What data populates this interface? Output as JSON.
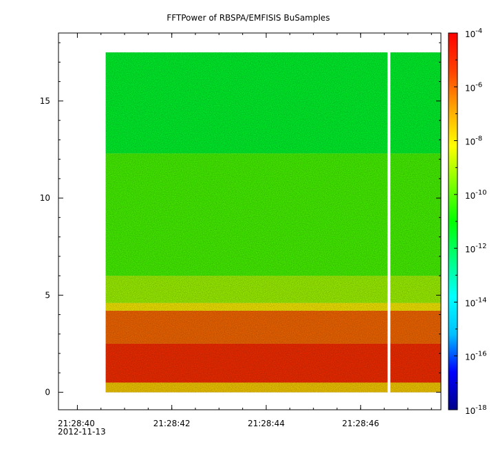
{
  "chart_data": {
    "type": "heatmap",
    "title": "FFTPower of RBSPA/EMFISIS  BuSamples",
    "xlabel": "",
    "ylabel": "",
    "date_label": "2012-11-13",
    "x_ticks": [
      "21:28:40",
      "21:28:42",
      "21:28:44",
      "21:28:46"
    ],
    "x_range_seconds": [
      "21:28:39.6",
      "21:28:47.7"
    ],
    "data_start": "21:28:40.6",
    "data_end": "21:28:47.7",
    "gap_at": "21:28:46.6",
    "y_ticks": [
      0,
      5,
      10,
      15
    ],
    "ylim": [
      -0.9,
      18.5
    ],
    "y_data_range": [
      0,
      17.5
    ],
    "colorbar": {
      "scale": "log",
      "range": [
        "1e-18",
        "1e-4"
      ],
      "tick_exponents": [
        -4,
        -6,
        -8,
        -10,
        -12,
        -14,
        -16,
        -18
      ],
      "tick_base": "10",
      "colormap": [
        "#00008b",
        "#0000ff",
        "#00bfff",
        "#00ffff",
        "#00ff7f",
        "#00ff00",
        "#80ff00",
        "#ffff00",
        "#ffa500",
        "#ff4000",
        "#ff0000"
      ]
    },
    "bands": [
      {
        "y_from": 0,
        "y_to": 0.5,
        "log_power": -7.5
      },
      {
        "y_from": 0.5,
        "y_to": 2.5,
        "log_power": -5.0
      },
      {
        "y_from": 2.5,
        "y_to": 4.2,
        "log_power": -6.0
      },
      {
        "y_from": 4.2,
        "y_to": 4.6,
        "log_power": -8.0
      },
      {
        "y_from": 4.6,
        "y_to": 6.0,
        "log_power": -9.2
      },
      {
        "y_from": 6.0,
        "y_to": 12.3,
        "log_power": -10.2
      },
      {
        "y_from": 12.3,
        "y_to": 17.5,
        "log_power": -11.5
      }
    ]
  }
}
